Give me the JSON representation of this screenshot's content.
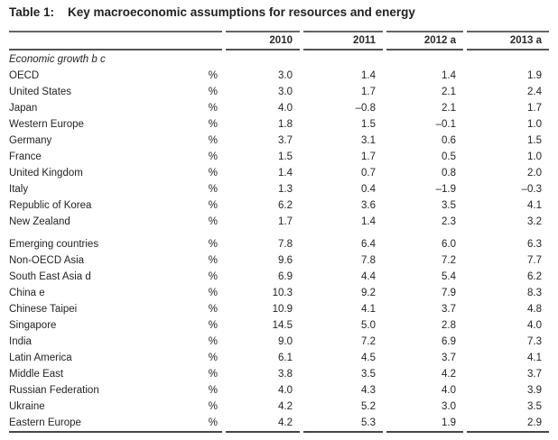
{
  "title": {
    "label": "Table 1:",
    "text": "Key macroeconomic assumptions for resources and energy"
  },
  "table": {
    "columns": [
      "2010",
      "2011",
      "2012 a",
      "2013 a"
    ],
    "section_label": "Economic growth b c",
    "groups": [
      {
        "rows": [
          {
            "name": "OECD",
            "unit": "%",
            "values": [
              "3.0",
              "1.4",
              "1.4",
              "1.9"
            ]
          },
          {
            "name": "United States",
            "unit": "%",
            "values": [
              "3.0",
              "1.7",
              "2.1",
              "2.4"
            ]
          },
          {
            "name": "Japan",
            "unit": "%",
            "values": [
              "4.0",
              "–0.8",
              "2.1",
              "1.7"
            ]
          },
          {
            "name": "Western Europe",
            "unit": "%",
            "values": [
              "1.8",
              "1.5",
              "–0.1",
              "1.0"
            ]
          },
          {
            "name": "Germany",
            "unit": "%",
            "values": [
              "3.7",
              "3.1",
              "0.6",
              "1.5"
            ]
          },
          {
            "name": "France",
            "unit": "%",
            "values": [
              "1.5",
              "1.7",
              "0.5",
              "1.0"
            ]
          },
          {
            "name": "United Kingdom",
            "unit": "%",
            "values": [
              "1.4",
              "0.7",
              "0.8",
              "2.0"
            ]
          },
          {
            "name": "Italy",
            "unit": "%",
            "values": [
              "1.3",
              "0.4",
              "–1.9",
              "–0.3"
            ]
          },
          {
            "name": "Republic of Korea",
            "unit": "%",
            "values": [
              "6.2",
              "3.6",
              "3.5",
              "4.1"
            ]
          },
          {
            "name": "New Zealand",
            "unit": "%",
            "values": [
              "1.7",
              "1.4",
              "2.3",
              "3.2"
            ]
          }
        ]
      },
      {
        "rows": [
          {
            "name": "Emerging countries",
            "unit": "%",
            "values": [
              "7.8",
              "6.4",
              "6.0",
              "6.3"
            ]
          },
          {
            "name": "Non-OECD Asia",
            "unit": "%",
            "values": [
              "9.6",
              "7.8",
              "7.2",
              "7.7"
            ]
          },
          {
            "name": "South East Asia d",
            "unit": "%",
            "values": [
              "6.9",
              "4.4",
              "5.4",
              "6.2"
            ]
          },
          {
            "name": "China e",
            "unit": "%",
            "values": [
              "10.3",
              "9.2",
              "7.9",
              "8.3"
            ]
          },
          {
            "name": "Chinese Taipei",
            "unit": "%",
            "values": [
              "10.9",
              "4.1",
              "3.7",
              "4.8"
            ]
          },
          {
            "name": "Singapore",
            "unit": "%",
            "values": [
              "14.5",
              "5.0",
              "2.8",
              "4.0"
            ]
          },
          {
            "name": "India",
            "unit": "%",
            "values": [
              "9.0",
              "7.2",
              "6.9",
              "7.3"
            ]
          },
          {
            "name": "Latin America",
            "unit": "%",
            "values": [
              "6.1",
              "4.5",
              "3.7",
              "4.1"
            ]
          },
          {
            "name": "Middle East",
            "unit": "%",
            "values": [
              "3.8",
              "3.5",
              "4.2",
              "3.7"
            ]
          },
          {
            "name": "Russian Federation",
            "unit": "%",
            "values": [
              "4.0",
              "4.3",
              "4.0",
              "3.9"
            ]
          },
          {
            "name": "Ukraine",
            "unit": "%",
            "values": [
              "4.2",
              "5.2",
              "3.0",
              "3.5"
            ]
          },
          {
            "name": "Eastern Europe",
            "unit": "%",
            "values": [
              "4.2",
              "5.3",
              "1.9",
              "2.9"
            ]
          }
        ]
      }
    ]
  }
}
